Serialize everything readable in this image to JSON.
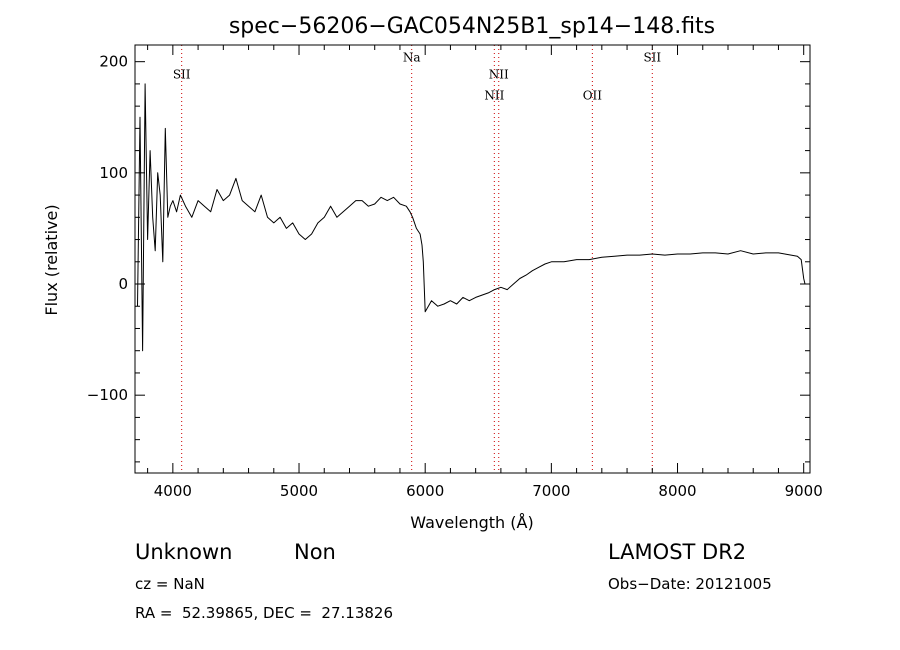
{
  "chart_data": {
    "type": "line",
    "title": "spec−56206−GAC054N25B1_sp14−148.fits",
    "xlabel": "Wavelength (Å)",
    "ylabel": "Flux (relative)",
    "xlim": [
      3700,
      9050
    ],
    "ylim": [
      -170,
      215
    ],
    "xticks": [
      {
        "value": 4000,
        "label": "4000"
      },
      {
        "value": 5000,
        "label": "5000"
      },
      {
        "value": 6000,
        "label": "6000"
      },
      {
        "value": 7000,
        "label": "7000"
      },
      {
        "value": 8000,
        "label": "8000"
      },
      {
        "value": 9000,
        "label": "9000"
      }
    ],
    "yticks": [
      {
        "value": 200,
        "label": "200"
      },
      {
        "value": 100,
        "label": "100"
      },
      {
        "value": 0,
        "label": "0"
      },
      {
        "value": -100,
        "label": "−100"
      }
    ],
    "line_color": "#000000",
    "marker_color": "#cc0000",
    "series": [
      {
        "x": [
          3720,
          3740,
          3760,
          3780,
          3800,
          3820,
          3840,
          3860,
          3880,
          3900,
          3920,
          3940,
          3960,
          3980,
          4000,
          4030,
          4060,
          4100,
          4150,
          4200,
          4250,
          4300,
          4350,
          4400,
          4450,
          4500,
          4550,
          4600,
          4650,
          4700,
          4750,
          4800,
          4850,
          4900,
          4950,
          5000,
          5050,
          5100,
          5150,
          5200,
          5250,
          5300,
          5350,
          5400,
          5450,
          5500,
          5550,
          5600,
          5650,
          5700,
          5750,
          5800,
          5850,
          5880,
          5900,
          5930,
          5960,
          5975,
          5985,
          6000,
          6050,
          6100,
          6150,
          6200,
          6250,
          6300,
          6350,
          6400,
          6450,
          6500,
          6550,
          6600,
          6650,
          6700,
          6750,
          6800,
          6850,
          6900,
          6950,
          7000,
          7100,
          7200,
          7300,
          7400,
          7500,
          7600,
          7700,
          7800,
          7900,
          8000,
          8100,
          8200,
          8300,
          8400,
          8500,
          8600,
          8700,
          8800,
          8900,
          8950,
          8980,
          9000,
          9010
        ],
        "y": [
          -20,
          150,
          -60,
          180,
          40,
          120,
          60,
          30,
          100,
          80,
          20,
          140,
          60,
          70,
          75,
          65,
          80,
          70,
          60,
          75,
          70,
          65,
          85,
          75,
          80,
          95,
          75,
          70,
          65,
          80,
          60,
          55,
          60,
          50,
          55,
          45,
          40,
          45,
          55,
          60,
          70,
          60,
          65,
          70,
          75,
          75,
          70,
          72,
          78,
          75,
          78,
          72,
          70,
          65,
          60,
          50,
          45,
          35,
          20,
          -25,
          -15,
          -20,
          -18,
          -15,
          -18,
          -12,
          -15,
          -12,
          -10,
          -8,
          -5,
          -3,
          -5,
          0,
          5,
          8,
          12,
          15,
          18,
          20,
          20,
          22,
          22,
          24,
          25,
          26,
          26,
          27,
          26,
          27,
          27,
          28,
          28,
          27,
          30,
          27,
          28,
          28,
          26,
          25,
          22,
          5,
          0
        ]
      }
    ],
    "annotations": [
      {
        "label": "SII",
        "x": 4070,
        "text_y": 185
      },
      {
        "label": "Na",
        "x": 5893,
        "text_y": 200
      },
      {
        "label": "NII",
        "x": 6548,
        "text_y": 166
      },
      {
        "label": "NII",
        "x": 6583,
        "text_y": 185
      },
      {
        "label": "OII",
        "x": 7325,
        "text_y": 166
      },
      {
        "label": "SII",
        "x": 7800,
        "text_y": 200
      }
    ]
  },
  "info": {
    "object_type": "Unknown",
    "subclass": "Non",
    "survey": "LAMOST DR2",
    "cz": "cz = NaN",
    "obs_date": "Obs−Date: 20121005",
    "coords": "RA =  52.39865, DEC =  27.13826"
  }
}
